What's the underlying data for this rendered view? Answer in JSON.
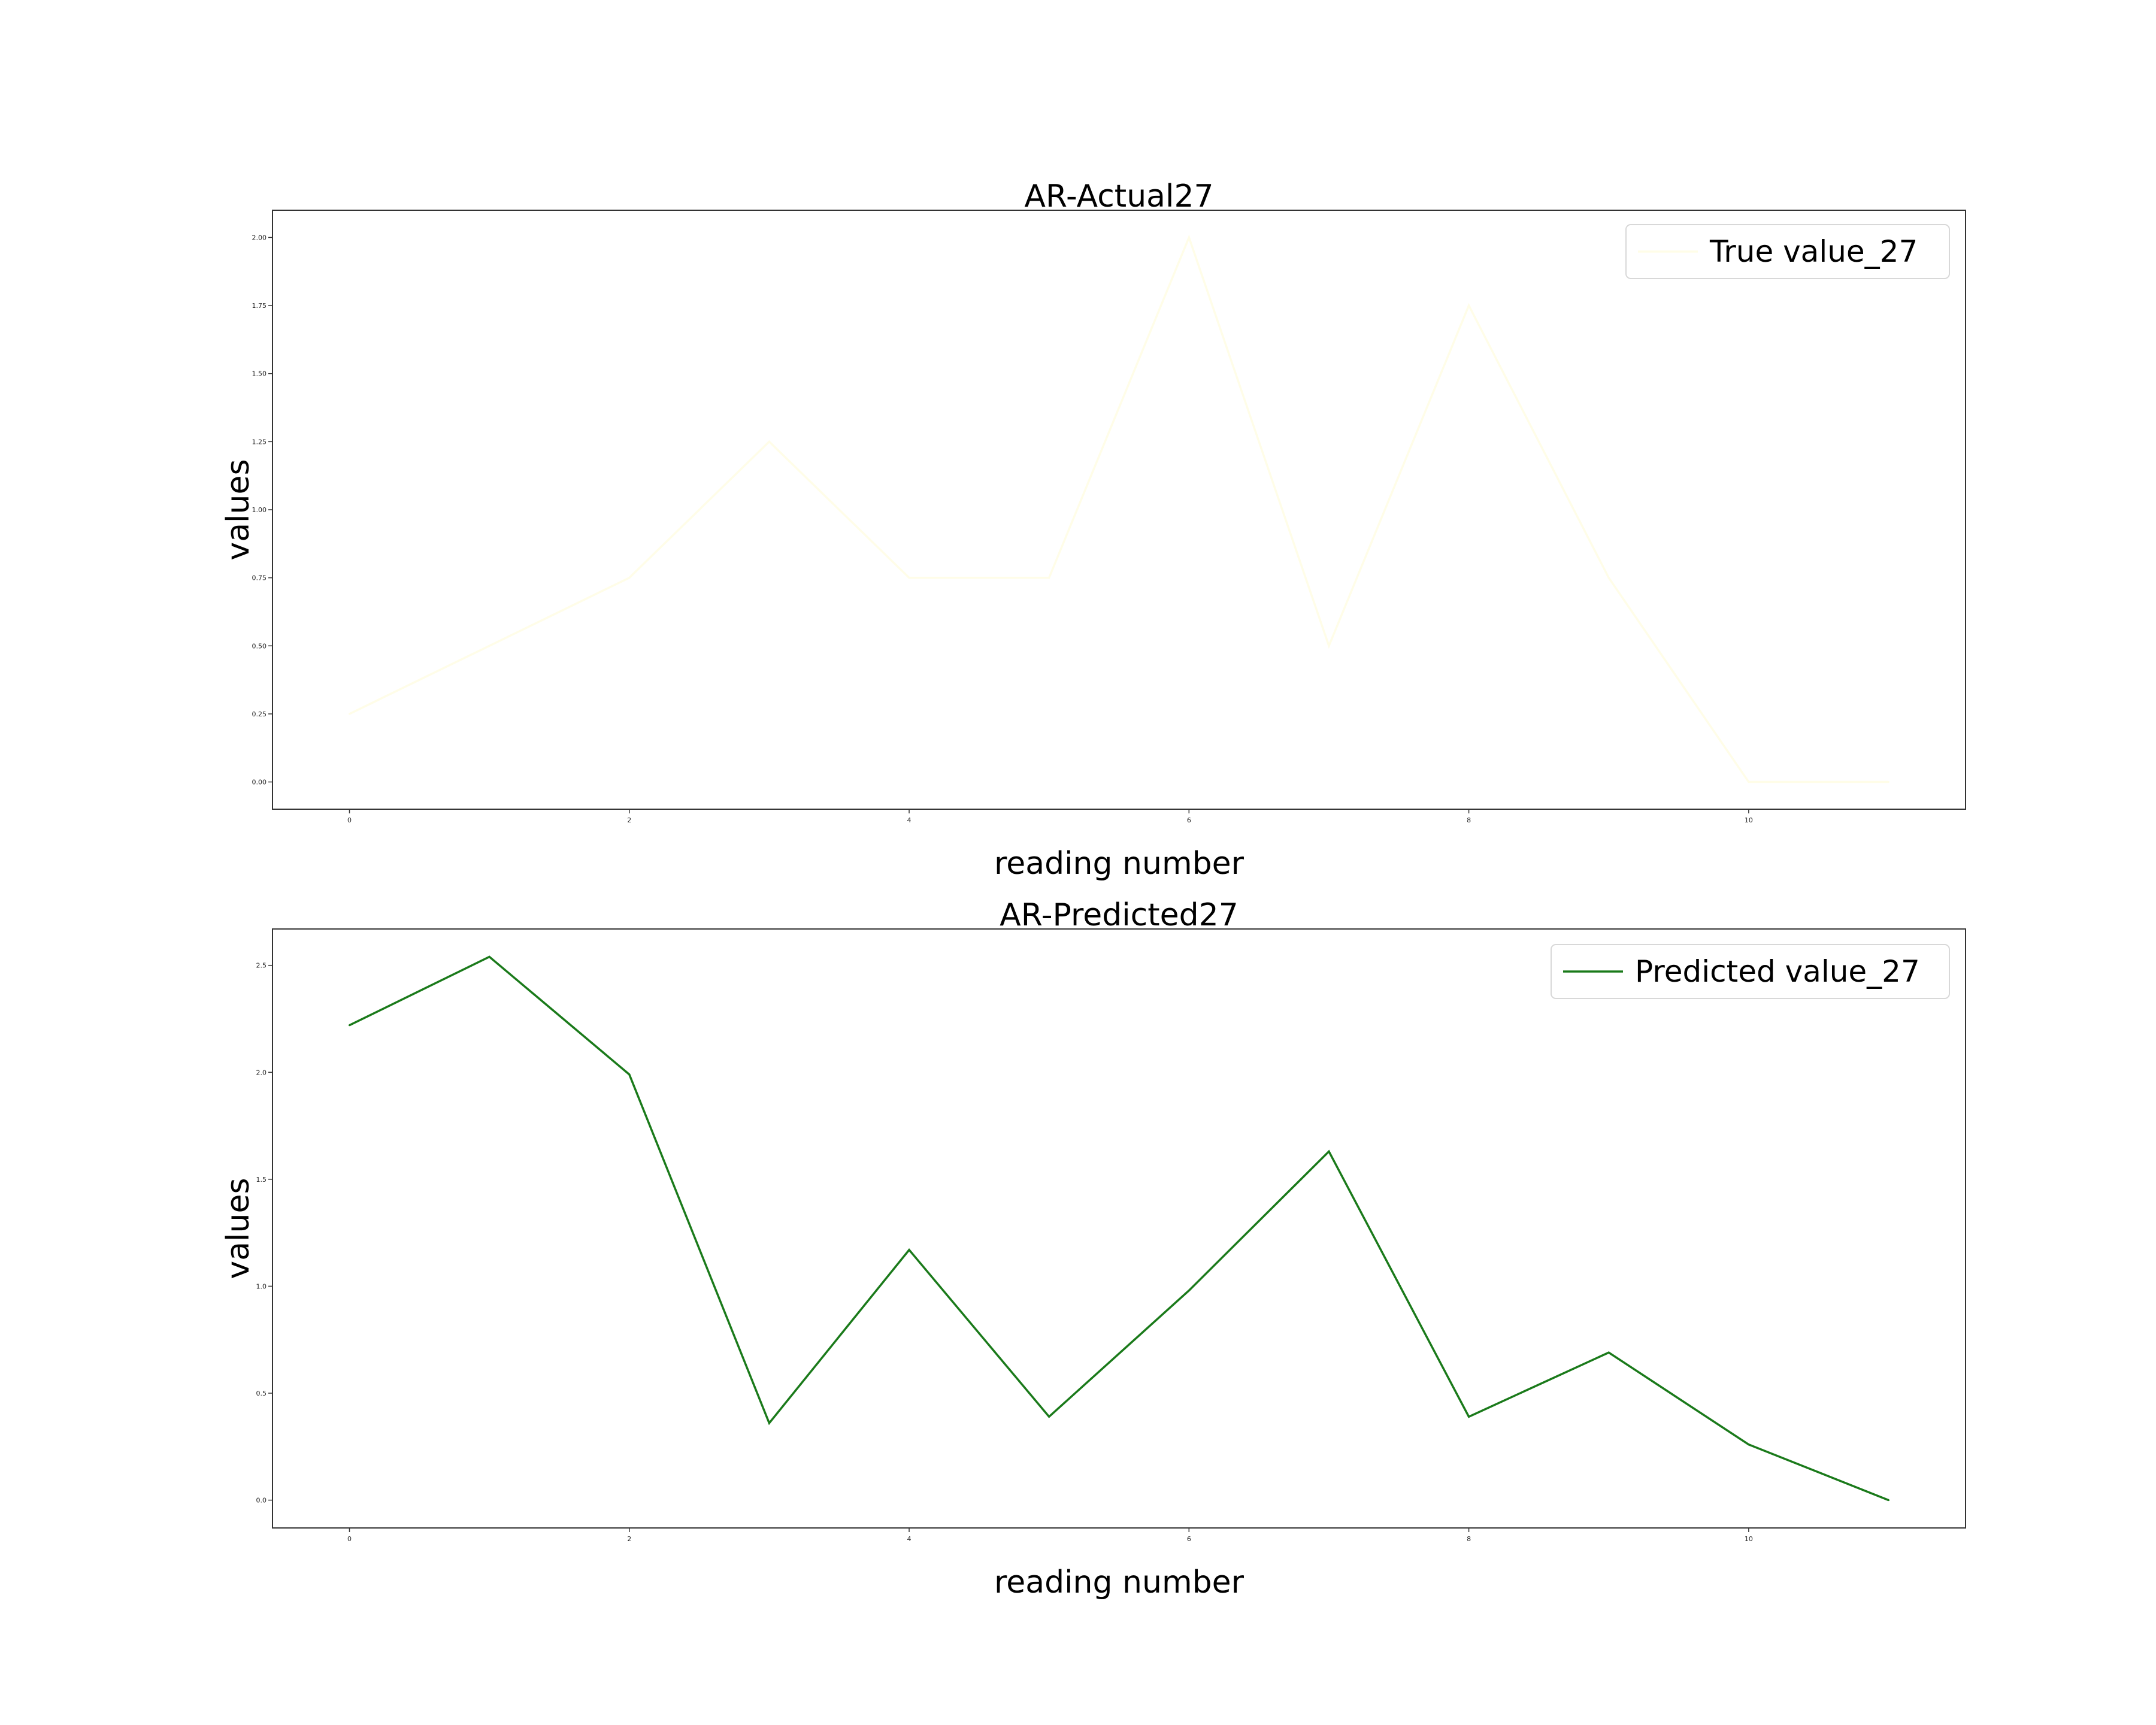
{
  "chart_data": [
    {
      "type": "line",
      "title": "AR-Actual27",
      "xlabel": "reading number",
      "ylabel": "values",
      "x": [
        0,
        1,
        2,
        3,
        4,
        5,
        6,
        7,
        8,
        9,
        10,
        11
      ],
      "x_ticks": [
        0,
        2,
        4,
        6,
        8,
        10
      ],
      "x_tick_labels": [
        "0",
        "2",
        "4",
        "6",
        "8",
        "10"
      ],
      "y_ticks": [
        0.0,
        0.25,
        0.5,
        0.75,
        1.0,
        1.25,
        1.5,
        1.75,
        2.0
      ],
      "y_tick_labels": [
        "0.00",
        "0.25",
        "0.50",
        "0.75",
        "1.00",
        "1.25",
        "1.50",
        "1.75",
        "2.00"
      ],
      "xlim": [
        -0.55,
        11.55
      ],
      "ylim": [
        -0.1,
        2.1
      ],
      "grid": false,
      "legend_position": "top-right",
      "series": [
        {
          "name": "True value_27",
          "color": "#fffde8",
          "values": [
            0.25,
            0.5,
            0.75,
            1.25,
            0.75,
            0.75,
            2.0,
            0.5,
            1.75,
            0.75,
            0.0,
            0.0
          ]
        }
      ]
    },
    {
      "type": "line",
      "title": "AR-Predicted27",
      "xlabel": "reading number",
      "ylabel": "values",
      "x": [
        0,
        1,
        2,
        3,
        4,
        5,
        6,
        7,
        8,
        9,
        10,
        11
      ],
      "x_ticks": [
        0,
        2,
        4,
        6,
        8,
        10
      ],
      "x_tick_labels": [
        "0",
        "2",
        "4",
        "6",
        "8",
        "10"
      ],
      "y_ticks": [
        0.0,
        0.5,
        1.0,
        1.5,
        2.0,
        2.5
      ],
      "y_tick_labels": [
        "0.0",
        "0.5",
        "1.0",
        "1.5",
        "2.0",
        "2.5"
      ],
      "xlim": [
        -0.55,
        11.55
      ],
      "ylim": [
        -0.13,
        2.67
      ],
      "grid": false,
      "legend_position": "top-right",
      "series": [
        {
          "name": "Predicted value_27",
          "color": "#1a7a1a",
          "values": [
            2.22,
            2.54,
            1.99,
            0.36,
            1.17,
            0.39,
            0.98,
            1.63,
            0.39,
            0.69,
            0.26,
            0.0
          ]
        }
      ]
    }
  ]
}
